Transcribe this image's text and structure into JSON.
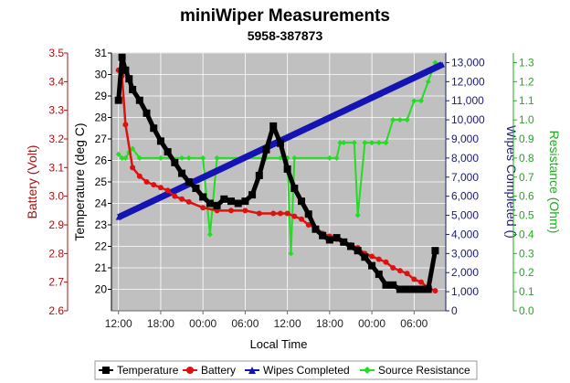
{
  "chart_data": {
    "type": "line",
    "title": "miniWiper Measurements",
    "subtitle": "5958-387873",
    "xlabel": "Local Time",
    "x_ticks": [
      "12:00",
      "18:00",
      "00:00",
      "06:00",
      "12:00",
      "18:00",
      "00:00",
      "06:00"
    ],
    "x_range_hours": [
      -1,
      46.5
    ],
    "grid": true,
    "legend_position": "bottom",
    "axes": {
      "battery": {
        "label": "Battery (Volt)",
        "range": [
          2.6,
          3.5
        ],
        "ticks": [
          "2.6",
          "2.7",
          "2.8",
          "2.9",
          "3.0",
          "3.1",
          "3.2",
          "3.3",
          "3.4",
          "3.5"
        ],
        "color": "#aa1111",
        "side": "left-outer"
      },
      "temperature": {
        "label": "Temperature (deg C)",
        "range": [
          19,
          31
        ],
        "ticks": [
          "20",
          "21",
          "22",
          "23",
          "24",
          "25",
          "26",
          "27",
          "28",
          "29",
          "30",
          "31"
        ],
        "color": "#000000",
        "side": "left-inner"
      },
      "wipes": {
        "label": "Wipes Completed ()",
        "range": [
          0,
          13500
        ],
        "ticks": [
          "0",
          "1,000",
          "2,000",
          "3,000",
          "4,000",
          "5,000",
          "6,000",
          "7,000",
          "8,000",
          "9,000",
          "10,000",
          "11,000",
          "12,000",
          "13,000"
        ],
        "color": "#1a1a7a",
        "side": "right-inner"
      },
      "resistance": {
        "label": "Resistance (Ohm)",
        "range": [
          0,
          1.35
        ],
        "ticks": [
          "0.0",
          "0.1",
          "0.2",
          "0.3",
          "0.4",
          "0.5",
          "0.6",
          "0.7",
          "0.8",
          "0.9",
          "1.0",
          "1.1",
          "1.2",
          "1.3"
        ],
        "color": "#22aa22",
        "side": "right-outer"
      }
    },
    "series": [
      {
        "name": "Temperature",
        "axis": "temperature",
        "color": "#000000",
        "marker": "square",
        "x": [
          0,
          0.5,
          1,
          1.5,
          2,
          3,
          4,
          5,
          6,
          7,
          8,
          9,
          10,
          11,
          12,
          13,
          14,
          15,
          16,
          17,
          18,
          19,
          20,
          21,
          22,
          23,
          24,
          25,
          26,
          27,
          28,
          29,
          30,
          31,
          32,
          33,
          34,
          35,
          36,
          37,
          38,
          39,
          40,
          41,
          42,
          43,
          44,
          45
        ],
        "y": [
          28.8,
          30.8,
          30.2,
          29.8,
          29.3,
          28.8,
          28.2,
          27.5,
          26.9,
          26.4,
          25.9,
          25.4,
          25.0,
          24.7,
          24.3,
          24.0,
          23.9,
          24.2,
          24.1,
          24.0,
          24.1,
          24.4,
          25.3,
          26.5,
          27.6,
          26.8,
          25.6,
          24.7,
          24.1,
          23.5,
          22.8,
          22.5,
          22.3,
          22.4,
          22.2,
          22.0,
          21.8,
          21.5,
          21.1,
          20.7,
          20.2,
          20.2,
          20.0,
          20.0,
          20.0,
          20.0,
          20.0,
          21.8
        ]
      },
      {
        "name": "Battery",
        "axis": "battery",
        "color": "#dd1111",
        "marker": "circle",
        "x": [
          0,
          0.5,
          1,
          2,
          3,
          4,
          5,
          6,
          7,
          8,
          9,
          10,
          12,
          14,
          16,
          18,
          20,
          22,
          23,
          24,
          25,
          26,
          27,
          28,
          29,
          30,
          31,
          32,
          33,
          34,
          35,
          36,
          37,
          38,
          39,
          40,
          41,
          42,
          43,
          44,
          45
        ],
        "y": [
          3.44,
          3.42,
          3.25,
          3.1,
          3.07,
          3.05,
          3.04,
          3.03,
          3.02,
          3.0,
          2.99,
          2.98,
          2.96,
          2.95,
          2.95,
          2.95,
          2.94,
          2.94,
          2.94,
          2.94,
          2.93,
          2.92,
          2.9,
          2.89,
          2.87,
          2.86,
          2.85,
          2.84,
          2.83,
          2.82,
          2.8,
          2.79,
          2.78,
          2.77,
          2.75,
          2.74,
          2.73,
          2.71,
          2.7,
          2.68,
          2.67
        ]
      },
      {
        "name": "Wipes Completed",
        "axis": "wipes",
        "color": "#1414b4",
        "marker": "triangle",
        "x": [
          0,
          46
        ],
        "y": [
          4900,
          12900
        ]
      },
      {
        "name": "Source Resistance",
        "axis": "resistance",
        "color": "#22dd22",
        "marker": "diamond",
        "x": [
          0,
          0.5,
          1,
          1.5,
          2,
          3,
          6,
          9,
          10,
          12,
          13,
          14,
          18,
          21,
          23,
          24,
          24.5,
          25,
          30,
          31,
          31.5,
          32,
          33.5,
          34,
          35,
          36,
          37,
          38,
          39,
          40,
          41,
          42,
          43,
          44,
          45
        ],
        "y": [
          0.82,
          0.8,
          0.8,
          0.83,
          0.85,
          0.8,
          0.8,
          0.8,
          0.8,
          0.8,
          0.4,
          0.8,
          0.8,
          0.8,
          0.8,
          0.8,
          0.3,
          0.8,
          0.8,
          0.8,
          0.88,
          0.88,
          0.88,
          0.5,
          0.88,
          0.88,
          0.88,
          0.88,
          1.0,
          1.0,
          1.0,
          1.1,
          1.1,
          1.2,
          1.3
        ]
      }
    ]
  }
}
